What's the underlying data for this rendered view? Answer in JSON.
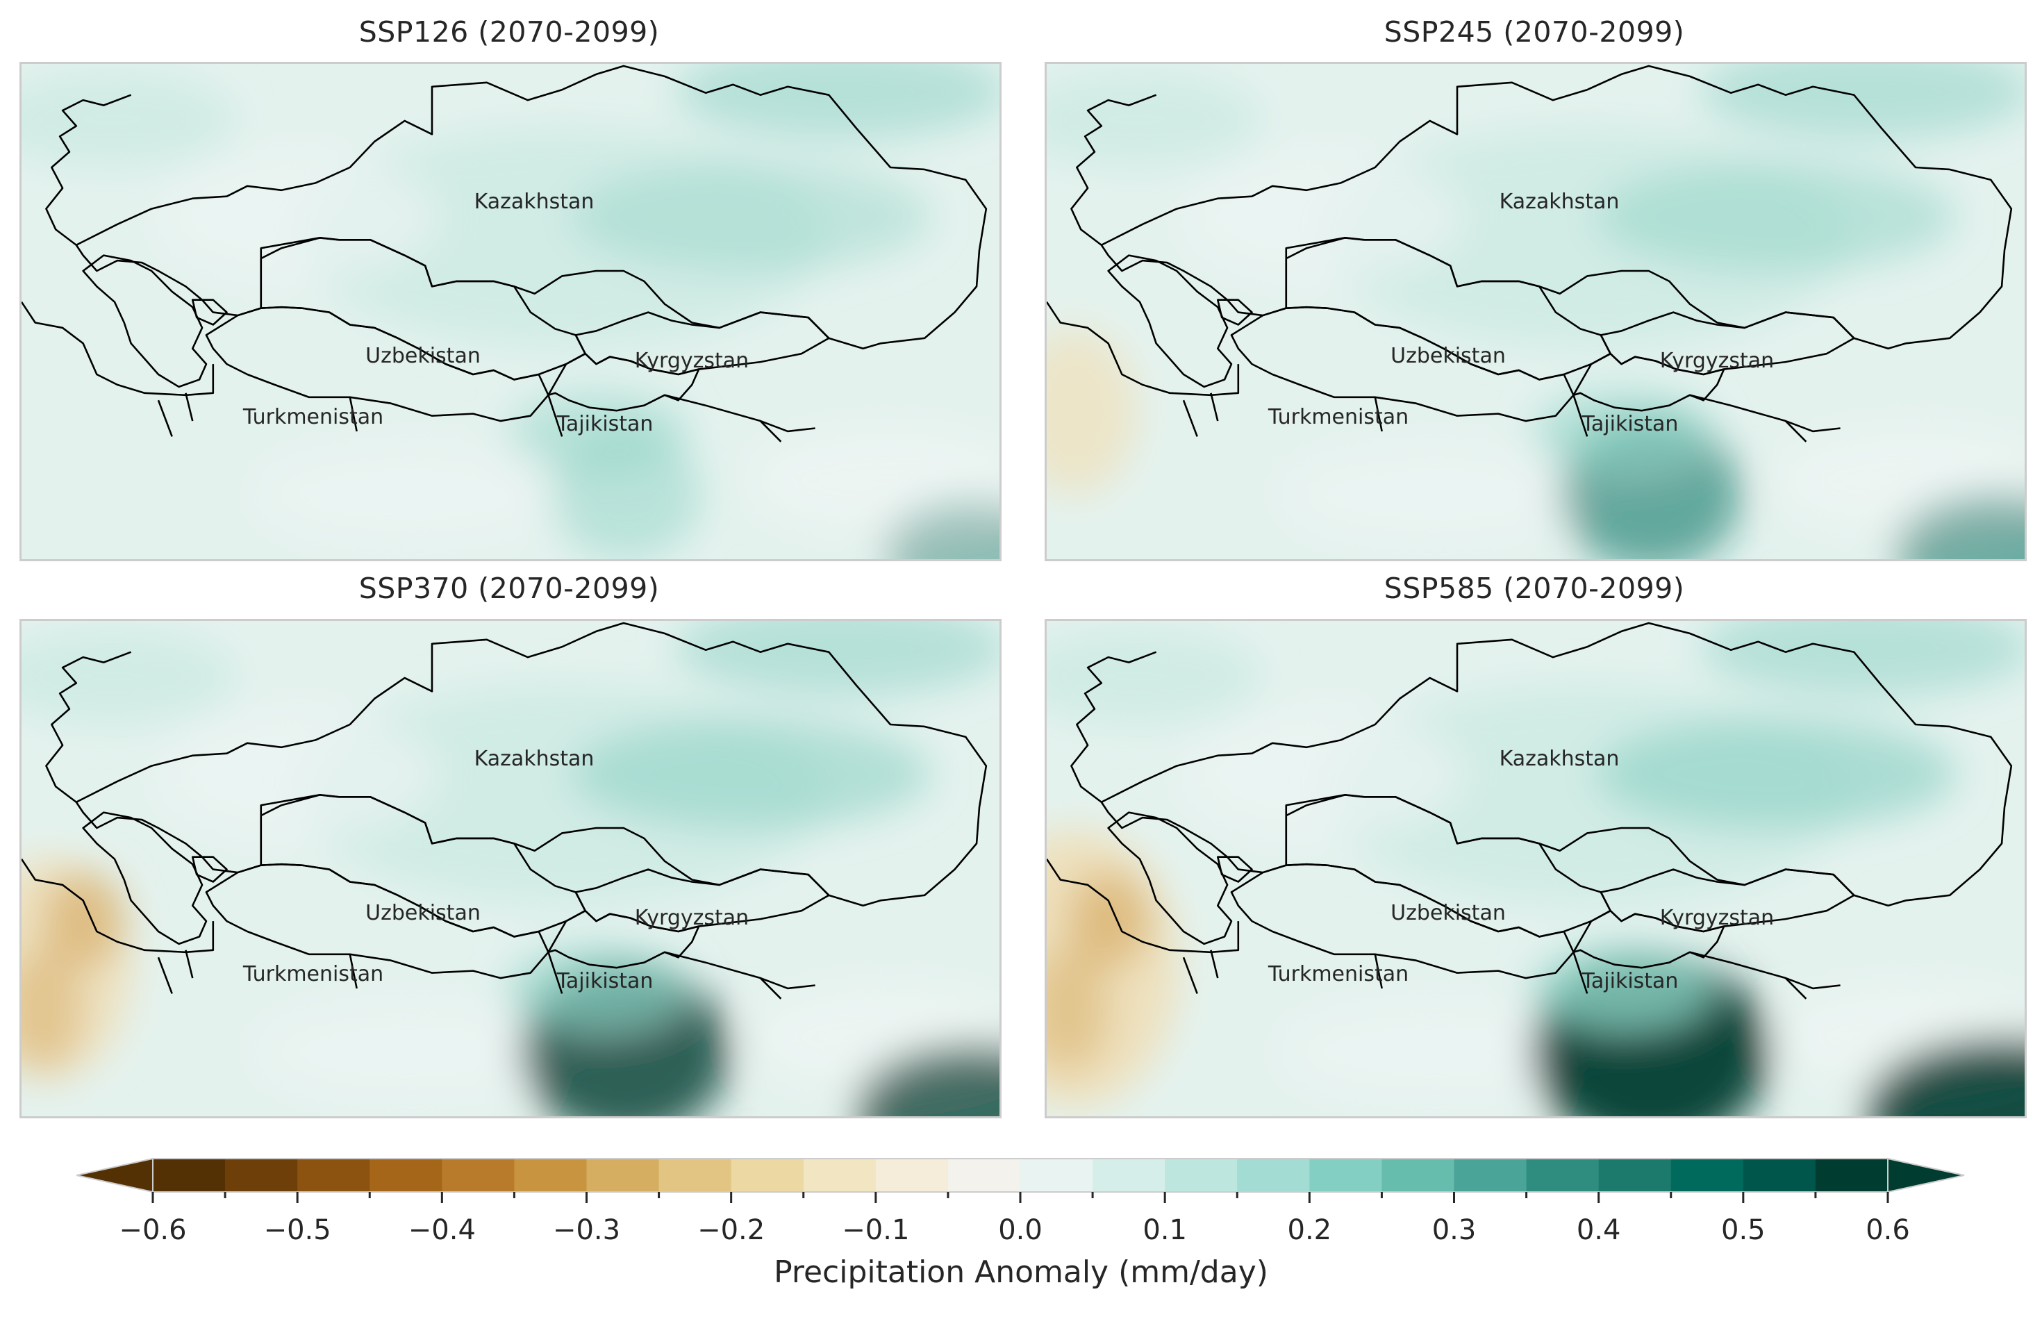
{
  "panels": [
    {
      "title": "SSP126 (2070-2099)",
      "level": 1
    },
    {
      "title": "SSP245 (2070-2099)",
      "level": 2
    },
    {
      "title": "SSP370 (2070-2099)",
      "level": 3
    },
    {
      "title": "SSP585 (2070-2099)",
      "level": 4
    }
  ],
  "countries": {
    "kazakhstan": "Kazakhstan",
    "uzbekistan": "Uzbekistan",
    "kyrgyzstan": "Kyrgyzstan",
    "turkmenistan": "Turkmenistan",
    "tajikistan": "Tajikistan"
  },
  "colorbar": {
    "label": "Precipitation Anomaly (mm/day)",
    "ticks": [
      "−0.6",
      "−0.5",
      "−0.4",
      "−0.3",
      "−0.2",
      "−0.1",
      "0.0",
      "0.1",
      "0.2",
      "0.3",
      "0.4",
      "0.5",
      "0.6"
    ],
    "colors": [
      "#543005",
      "#6f3f0a",
      "#8c520f",
      "#a5661a",
      "#b77b2b",
      "#c8943f",
      "#d6ae61",
      "#e2c583",
      "#ebd8a3",
      "#f2e5c2",
      "#f5ecd9",
      "#f4f2ec",
      "#e9f3f1",
      "#d6eee9",
      "#bde6df",
      "#a2dcd2",
      "#84cfc3",
      "#66bdae",
      "#4aa497",
      "#2f8d80",
      "#1c7a6d",
      "#006a5d",
      "#00564a",
      "#003c30"
    ],
    "vmin": -0.6,
    "vmax": 0.6
  },
  "palette": {
    "base": "#e4f2ee",
    "light": "#edf5f3",
    "mid": "#c4e7e0",
    "teal": "#8fd3c6",
    "dark": "#1f7f72",
    "darkest": "#003c30",
    "tan": "#f0dfb8",
    "brown": "#d9ae68"
  }
}
